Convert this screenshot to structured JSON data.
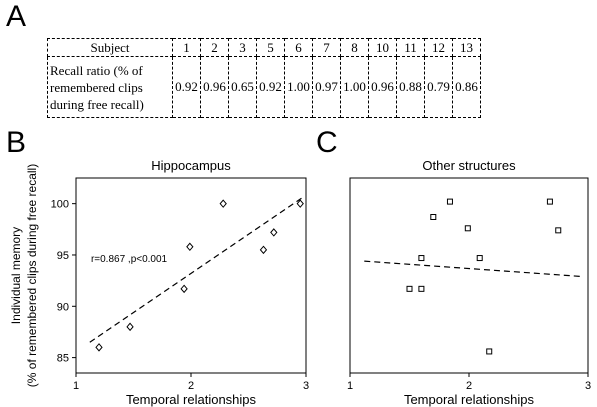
{
  "panel_labels": {
    "a": "A",
    "b": "B",
    "c": "C"
  },
  "table": {
    "subject_header": "Subject",
    "row_label_lines": [
      "Recall ratio (% of",
      "remembered clips",
      "during free recall)"
    ],
    "subjects": [
      "1",
      "2",
      "3",
      "5",
      "6",
      "7",
      "8",
      "10",
      "11",
      "12",
      "13"
    ],
    "recall_ratios": [
      "0.92",
      "0.96",
      "0.65",
      "0.92",
      "1.00",
      "0.97",
      "1.00",
      "0.96",
      "0.88",
      "0.79",
      "0.86"
    ]
  },
  "chart_data": [
    {
      "type": "scatter",
      "title": "Hippocampus",
      "xlabel": "Temporal relationships",
      "ylabel_lines": [
        "Individual memory",
        "(% of remembered clips during free recall)"
      ],
      "xlim": [
        1,
        3
      ],
      "ylim": [
        83.5,
        102.5
      ],
      "xticks": [
        1,
        2,
        3
      ],
      "yticks": [
        85,
        90,
        95,
        100
      ],
      "marker": "diamond",
      "points": [
        [
          1.2,
          86
        ],
        [
          1.47,
          88
        ],
        [
          1.94,
          91.7
        ],
        [
          1.99,
          95.8
        ],
        [
          2.28,
          100
        ],
        [
          2.63,
          95.5
        ],
        [
          2.72,
          97.2
        ],
        [
          2.95,
          100
        ]
      ],
      "fit_line": [
        [
          1.12,
          86.5
        ],
        [
          2.97,
          100.6
        ]
      ],
      "annotation": "r=0.867 ,p<0.001",
      "annotation_pos": [
        1.13,
        94.3
      ]
    },
    {
      "type": "scatter",
      "title": "Other structures",
      "xlabel": "Temporal relationships",
      "xlim": [
        1,
        3
      ],
      "ylim": [
        83.5,
        102.5
      ],
      "xticks": [
        1,
        2,
        3
      ],
      "yticks": [],
      "marker": "square",
      "points": [
        [
          1.5,
          91.7
        ],
        [
          1.6,
          91.7
        ],
        [
          1.6,
          94.7
        ],
        [
          1.7,
          98.7
        ],
        [
          1.84,
          100.2
        ],
        [
          1.99,
          97.6
        ],
        [
          2.09,
          94.7
        ],
        [
          2.17,
          85.6
        ],
        [
          2.68,
          100.2
        ],
        [
          2.75,
          97.4
        ]
      ],
      "fit_line": [
        [
          1.12,
          94.4
        ],
        [
          2.95,
          92.9
        ]
      ]
    }
  ]
}
